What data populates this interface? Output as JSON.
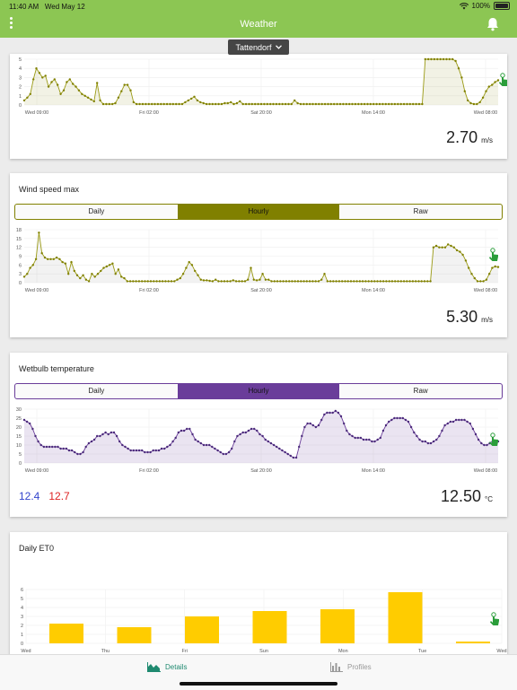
{
  "status": {
    "time": "11:40 AM",
    "date": "Wed May 12",
    "battery": "100%"
  },
  "header": {
    "title": "Weather",
    "location": "Tattendorf"
  },
  "x_ticks": [
    "Wed 09:00",
    "Fri 02:00",
    "Sat 20:00",
    "Mon 14:00",
    "Wed 08:00"
  ],
  "segments": {
    "daily": "Daily",
    "hourly": "Hourly",
    "raw": "Raw"
  },
  "cards": {
    "wind_speed": {
      "value": "2.70",
      "unit": "m/s"
    },
    "wind_max": {
      "title": "Wind speed max",
      "value": "5.30",
      "unit": "m/s"
    },
    "wetbulb": {
      "title": "Wetbulb temperature",
      "min": "12.4",
      "max": "12.7",
      "value": "12.50",
      "unit": "°C"
    },
    "et0": {
      "title": "Daily ET0"
    }
  },
  "colors": {
    "green": "#8cc653",
    "olive": "#808000",
    "purple": "#6a3d9a",
    "yellow": "#ffcc00",
    "min_text": "#3344cc",
    "max_text": "#dd2222"
  },
  "tabs": {
    "details": "Details",
    "profiles": "Profiles"
  },
  "chart_data": [
    {
      "type": "line",
      "title": "",
      "x_ticks": [
        "Wed 09:00",
        "Fri 02:00",
        "Sat 20:00",
        "Mon 14:00",
        "Wed 08:00"
      ],
      "y_ticks": [
        "0",
        "1",
        "2",
        "3",
        "4",
        "5"
      ],
      "ylim": [
        0,
        5
      ],
      "series": [
        {
          "values": [
            0.5,
            0.8,
            1.2,
            2.8,
            4.0,
            3.5,
            3.0,
            3.2,
            2.0,
            2.5,
            2.8,
            2.2,
            1.2,
            1.6,
            2.5,
            2.8,
            2.3,
            2.0,
            1.6,
            1.2,
            1.0,
            0.8,
            0.6,
            0.4,
            2.4,
            0.5,
            0.1,
            0.1,
            0.1,
            0.1,
            0.2,
            0.8,
            1.5,
            2.2,
            2.2,
            1.6,
            0.3,
            0.1,
            0.1,
            0.1,
            0.1,
            0.1,
            0.1,
            0.1,
            0.1,
            0.1,
            0.1,
            0.1,
            0.1,
            0.1,
            0.1,
            0.1,
            0.1,
            0.3,
            0.5,
            0.7,
            0.9,
            0.5,
            0.3,
            0.2,
            0.1,
            0.1,
            0.1,
            0.1,
            0.1,
            0.1,
            0.2,
            0.2,
            0.3,
            0.1,
            0.2,
            0.4,
            0.1,
            0.1,
            0.1,
            0.1,
            0.1,
            0.1,
            0.1,
            0.1,
            0.1,
            0.1,
            0.1,
            0.1,
            0.1,
            0.1,
            0.1,
            0.1,
            0.1,
            0.5,
            0.2,
            0.1,
            0.1,
            0.1,
            0.1,
            0.1,
            0.1,
            0.1,
            0.1,
            0.1,
            0.1,
            0.1,
            0.1,
            0.1,
            0.1,
            0.1,
            0.1,
            0.1,
            0.1,
            0.1,
            0.1,
            0.1,
            0.1,
            0.1,
            0.1,
            0.1,
            0.1,
            0.1,
            0.1,
            0.1,
            0.1,
            0.1,
            0.1,
            0.1,
            0.1,
            0.1,
            0.1,
            0.1,
            0.1,
            0.1,
            0.1,
            0.1,
            5.5,
            5.5,
            5.5,
            5.5,
            5.5,
            5.5,
            5.5,
            5.5,
            5.5,
            5.2,
            4.8,
            4.0,
            3.0,
            1.5,
            0.5,
            0.2,
            0.1,
            0.1,
            0.3,
            0.8,
            1.5,
            2.0,
            2.2,
            2.5,
            2.7
          ]
        }
      ]
    },
    {
      "type": "area",
      "title": "Wind speed max",
      "x_ticks": [
        "Wed 09:00",
        "Fri 02:00",
        "Sat 20:00",
        "Mon 14:00",
        "Wed 08:00"
      ],
      "y_ticks": [
        "0",
        "3",
        "6",
        "9",
        "12",
        "15",
        "18"
      ],
      "ylim": [
        0,
        18
      ],
      "series": [
        {
          "values": [
            2.0,
            3.0,
            5.0,
            6.0,
            8.0,
            17.0,
            10.0,
            8.5,
            8.0,
            8.0,
            8.0,
            8.5,
            8.0,
            7.0,
            6.5,
            3.0,
            7.0,
            4.0,
            2.5,
            1.5,
            2.5,
            1.0,
            0.5,
            3.0,
            2.0,
            3.0,
            4.0,
            5.0,
            5.5,
            6.0,
            6.5,
            3.0,
            4.5,
            2.0,
            1.5,
            0.5,
            0.5,
            0.5,
            0.5,
            0.5,
            0.5,
            0.5,
            0.5,
            0.5,
            0.5,
            0.5,
            0.5,
            0.5,
            0.5,
            0.5,
            0.5,
            0.5,
            1.0,
            1.5,
            3.0,
            5.0,
            7.0,
            6.0,
            4.0,
            2.5,
            1.0,
            0.8,
            0.8,
            0.6,
            0.5,
            1.0,
            0.5,
            0.5,
            0.5,
            0.5,
            0.5,
            0.8,
            0.5,
            0.5,
            0.5,
            0.5,
            1.0,
            5.0,
            1.0,
            0.8,
            1.0,
            3.0,
            1.0,
            1.0,
            0.5,
            0.5,
            0.5,
            0.5,
            0.5,
            0.5,
            0.5,
            0.5,
            0.5,
            0.5,
            0.5,
            0.5,
            0.5,
            0.5,
            0.5,
            0.5,
            0.5,
            1.0,
            3.0,
            0.5,
            0.5,
            0.5,
            0.5,
            0.5,
            0.5,
            0.5,
            0.5,
            0.5,
            0.5,
            0.5,
            0.5,
            0.5,
            0.5,
            0.5,
            0.5,
            0.5,
            0.5,
            0.5,
            0.5,
            0.5,
            0.5,
            0.5,
            0.5,
            0.5,
            0.5,
            0.5,
            0.5,
            0.5,
            0.5,
            0.5,
            0.5,
            0.5,
            0.5,
            0.5,
            0.5,
            12.0,
            12.5,
            12.0,
            12.0,
            12.0,
            13.0,
            12.5,
            12.0,
            11.0,
            10.5,
            9.5,
            7.5,
            5.0,
            3.0,
            1.5,
            0.5,
            0.5,
            0.5,
            1.0,
            3.0,
            5.0,
            5.5,
            5.3
          ]
        }
      ]
    },
    {
      "type": "area",
      "title": "Wetbulb temperature",
      "x_ticks": [
        "Wed 09:00",
        "Fri 02:00",
        "Sat 20:00",
        "Mon 14:00",
        "Wed 08:00"
      ],
      "y_ticks": [
        "0",
        "5",
        "10",
        "15",
        "20",
        "25",
        "30"
      ],
      "ylim": [
        0,
        30
      ],
      "series": [
        {
          "values": [
            24,
            23,
            22,
            19,
            15,
            12,
            10,
            9,
            9,
            9,
            9,
            9,
            9,
            8,
            8,
            8,
            7,
            7,
            6,
            5,
            5,
            6,
            9,
            11,
            12,
            13,
            15,
            15,
            16,
            17,
            16,
            17,
            17,
            15,
            12,
            10,
            9,
            8,
            7,
            7,
            7,
            7,
            7,
            6,
            6,
            6,
            7,
            7,
            7,
            8,
            8,
            9,
            10,
            12,
            14,
            17,
            18,
            18,
            19,
            19,
            16,
            13,
            12,
            11,
            10,
            10,
            10,
            9,
            8,
            7,
            6,
            5,
            5,
            6,
            8,
            12,
            15,
            16,
            17,
            17,
            18,
            19,
            19,
            18,
            16,
            15,
            13,
            12,
            11,
            10,
            9,
            8,
            7,
            6,
            5,
            4,
            3,
            3,
            9,
            15,
            20,
            22,
            22,
            21,
            20,
            21,
            24,
            27,
            28,
            28,
            28,
            29,
            28,
            26,
            22,
            18,
            16,
            15,
            14,
            14,
            14,
            13,
            13,
            13,
            12,
            12,
            13,
            14,
            18,
            21,
            23,
            24,
            25,
            25,
            25,
            25,
            24,
            23,
            20,
            17,
            15,
            13,
            12,
            12,
            11,
            11,
            12,
            13,
            15,
            18,
            21,
            22,
            23,
            23,
            24,
            24,
            24,
            24,
            23,
            22,
            19,
            16,
            13,
            11,
            10,
            10,
            11,
            12,
            12,
            12
          ]
        }
      ]
    },
    {
      "type": "bar",
      "title": "Daily ET0",
      "categories": [
        "Wed",
        "Thu",
        "Fri",
        "Sun",
        "Mon",
        "Tue",
        "Wed"
      ],
      "values": [
        2.2,
        1.8,
        3.0,
        3.6,
        3.8,
        5.7,
        0.2
      ],
      "y_ticks": [
        "0",
        "1",
        "2",
        "3",
        "4",
        "5",
        "6"
      ],
      "ylim": [
        0,
        6
      ]
    }
  ]
}
